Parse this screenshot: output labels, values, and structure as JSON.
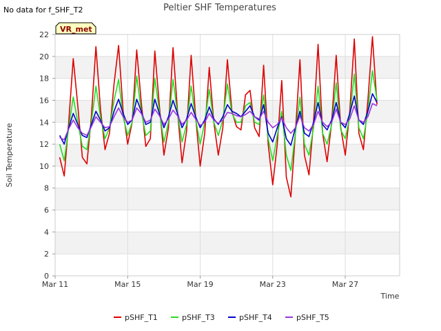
{
  "chart_data": {
    "type": "line",
    "title": "Peltier SHF Temperatures",
    "no_data_note": "No data for f_SHF_T2",
    "badge": "VR_met",
    "xlabel": "Time",
    "ylabel": "Soil Temperature",
    "ylim": [
      0,
      22
    ],
    "yticks": [
      0,
      2,
      4,
      6,
      8,
      10,
      12,
      14,
      16,
      18,
      20,
      22
    ],
    "xlim": [
      "2025-03-11",
      "2025-03-30"
    ],
    "xticks": [
      {
        "date": "2025-03-11",
        "label": "Mar 11"
      },
      {
        "date": "2025-03-15",
        "label": "Mar 15"
      },
      {
        "date": "2025-03-19",
        "label": "Mar 19"
      },
      {
        "date": "2025-03-23",
        "label": "Mar 23"
      },
      {
        "date": "2025-03-27",
        "label": "Mar 27"
      }
    ],
    "grid": true,
    "legend_position": "bottom",
    "series": [
      {
        "name": "pSHF_T1",
        "color": "#dd0000",
        "x": [
          "2025-03-11 06:00",
          "2025-03-11 12:00",
          "2025-03-11 18:00",
          "2025-03-12 00:00",
          "2025-03-12 06:00",
          "2025-03-12 12:00",
          "2025-03-12 18:00",
          "2025-03-13 00:00",
          "2025-03-13 06:00",
          "2025-03-13 12:00",
          "2025-03-13 18:00",
          "2025-03-14 00:00",
          "2025-03-14 06:00",
          "2025-03-14 12:00",
          "2025-03-14 18:00",
          "2025-03-15 00:00",
          "2025-03-15 06:00",
          "2025-03-15 12:00",
          "2025-03-15 18:00",
          "2025-03-16 00:00",
          "2025-03-16 06:00",
          "2025-03-16 12:00",
          "2025-03-16 18:00",
          "2025-03-17 00:00",
          "2025-03-17 06:00",
          "2025-03-17 12:00",
          "2025-03-17 18:00",
          "2025-03-18 00:00",
          "2025-03-18 06:00",
          "2025-03-18 12:00",
          "2025-03-18 18:00",
          "2025-03-19 00:00",
          "2025-03-19 06:00",
          "2025-03-19 12:00",
          "2025-03-19 18:00",
          "2025-03-20 00:00",
          "2025-03-20 06:00",
          "2025-03-20 12:00",
          "2025-03-20 18:00",
          "2025-03-21 00:00",
          "2025-03-21 06:00",
          "2025-03-21 12:00",
          "2025-03-21 18:00",
          "2025-03-22 00:00",
          "2025-03-22 06:00",
          "2025-03-22 12:00",
          "2025-03-22 18:00",
          "2025-03-23 00:00",
          "2025-03-23 06:00",
          "2025-03-23 12:00",
          "2025-03-23 18:00",
          "2025-03-24 00:00",
          "2025-03-24 06:00",
          "2025-03-24 12:00",
          "2025-03-24 18:00",
          "2025-03-25 00:00",
          "2025-03-25 06:00",
          "2025-03-25 12:00",
          "2025-03-25 18:00",
          "2025-03-26 00:00",
          "2025-03-26 06:00",
          "2025-03-26 12:00",
          "2025-03-26 18:00",
          "2025-03-27 00:00",
          "2025-03-27 06:00",
          "2025-03-27 12:00",
          "2025-03-27 18:00",
          "2025-03-28 00:00",
          "2025-03-28 06:00",
          "2025-03-28 12:00",
          "2025-03-28 18:00"
        ],
        "values": [
          10.8,
          9.1,
          14.0,
          19.8,
          15.5,
          10.8,
          10.2,
          14.5,
          20.9,
          15.2,
          11.5,
          13.0,
          17.5,
          21.0,
          15.0,
          12.0,
          14.0,
          20.6,
          15.8,
          11.8,
          12.5,
          20.5,
          15.5,
          11.0,
          13.5,
          20.8,
          15.0,
          10.3,
          13.2,
          20.1,
          14.5,
          10.0,
          13.0,
          19.0,
          14.0,
          11.0,
          13.5,
          19.7,
          15.0,
          13.6,
          13.3,
          16.5,
          16.9,
          13.5,
          12.7,
          19.2,
          12.0,
          8.3,
          12.0,
          17.8,
          9.0,
          7.2,
          13.0,
          19.7,
          11.0,
          9.2,
          14.0,
          21.1,
          13.0,
          10.4,
          14.0,
          20.1,
          13.5,
          11.0,
          15.0,
          21.6,
          13.0,
          11.5,
          16.0,
          21.8,
          15.6
        ]
      },
      {
        "name": "pSHF_T3",
        "color": "#22dd22",
        "x": [
          "2025-03-11 06:00",
          "2025-03-11 12:00",
          "2025-03-11 18:00",
          "2025-03-12 00:00",
          "2025-03-12 06:00",
          "2025-03-12 12:00",
          "2025-03-12 18:00",
          "2025-03-13 00:00",
          "2025-03-13 06:00",
          "2025-03-13 12:00",
          "2025-03-13 18:00",
          "2025-03-14 00:00",
          "2025-03-14 06:00",
          "2025-03-14 12:00",
          "2025-03-14 18:00",
          "2025-03-15 00:00",
          "2025-03-15 06:00",
          "2025-03-15 12:00",
          "2025-03-15 18:00",
          "2025-03-16 00:00",
          "2025-03-16 06:00",
          "2025-03-16 12:00",
          "2025-03-16 18:00",
          "2025-03-17 00:00",
          "2025-03-17 06:00",
          "2025-03-17 12:00",
          "2025-03-17 18:00",
          "2025-03-18 00:00",
          "2025-03-18 06:00",
          "2025-03-18 12:00",
          "2025-03-18 18:00",
          "2025-03-19 00:00",
          "2025-03-19 06:00",
          "2025-03-19 12:00",
          "2025-03-19 18:00",
          "2025-03-20 00:00",
          "2025-03-20 06:00",
          "2025-03-20 12:00",
          "2025-03-20 18:00",
          "2025-03-21 00:00",
          "2025-03-21 06:00",
          "2025-03-21 12:00",
          "2025-03-21 18:00",
          "2025-03-22 00:00",
          "2025-03-22 06:00",
          "2025-03-22 12:00",
          "2025-03-22 18:00",
          "2025-03-23 00:00",
          "2025-03-23 06:00",
          "2025-03-23 12:00",
          "2025-03-23 18:00",
          "2025-03-24 00:00",
          "2025-03-24 06:00",
          "2025-03-24 12:00",
          "2025-03-24 18:00",
          "2025-03-25 00:00",
          "2025-03-25 06:00",
          "2025-03-25 12:00",
          "2025-03-25 18:00",
          "2025-03-26 00:00",
          "2025-03-26 06:00",
          "2025-03-26 12:00",
          "2025-03-26 18:00",
          "2025-03-27 00:00",
          "2025-03-27 06:00",
          "2025-03-27 12:00",
          "2025-03-27 18:00",
          "2025-03-28 00:00",
          "2025-03-28 06:00",
          "2025-03-28 12:00",
          "2025-03-28 18:00"
        ],
        "values": [
          12.0,
          10.5,
          13.5,
          16.3,
          14.0,
          11.8,
          11.5,
          14.0,
          17.3,
          14.5,
          12.5,
          13.5,
          16.0,
          17.9,
          14.5,
          12.8,
          14.0,
          18.2,
          15.0,
          12.8,
          13.2,
          18.0,
          15.0,
          12.2,
          14.0,
          17.9,
          14.8,
          12.2,
          13.8,
          17.3,
          14.3,
          12.0,
          14.0,
          17.0,
          14.0,
          12.8,
          14.2,
          17.5,
          14.8,
          14.0,
          14.0,
          15.5,
          15.8,
          14.0,
          13.8,
          16.5,
          12.5,
          10.5,
          12.8,
          15.0,
          11.0,
          9.6,
          13.0,
          16.3,
          12.0,
          11.0,
          13.5,
          17.3,
          13.0,
          12.0,
          13.8,
          17.6,
          13.3,
          12.5,
          14.5,
          18.4,
          13.5,
          12.5,
          15.0,
          18.7,
          16.0
        ]
      },
      {
        "name": "pSHF_T4",
        "color": "#0000cc",
        "x": [
          "2025-03-11 06:00",
          "2025-03-11 12:00",
          "2025-03-11 18:00",
          "2025-03-12 00:00",
          "2025-03-12 06:00",
          "2025-03-12 12:00",
          "2025-03-12 18:00",
          "2025-03-13 00:00",
          "2025-03-13 06:00",
          "2025-03-13 12:00",
          "2025-03-13 18:00",
          "2025-03-14 00:00",
          "2025-03-14 06:00",
          "2025-03-14 12:00",
          "2025-03-14 18:00",
          "2025-03-15 00:00",
          "2025-03-15 06:00",
          "2025-03-15 12:00",
          "2025-03-15 18:00",
          "2025-03-16 00:00",
          "2025-03-16 06:00",
          "2025-03-16 12:00",
          "2025-03-16 18:00",
          "2025-03-17 00:00",
          "2025-03-17 06:00",
          "2025-03-17 12:00",
          "2025-03-17 18:00",
          "2025-03-18 00:00",
          "2025-03-18 06:00",
          "2025-03-18 12:00",
          "2025-03-18 18:00",
          "2025-03-19 00:00",
          "2025-03-19 06:00",
          "2025-03-19 12:00",
          "2025-03-19 18:00",
          "2025-03-20 00:00",
          "2025-03-20 06:00",
          "2025-03-20 12:00",
          "2025-03-20 18:00",
          "2025-03-21 00:00",
          "2025-03-21 06:00",
          "2025-03-21 12:00",
          "2025-03-21 18:00",
          "2025-03-22 00:00",
          "2025-03-22 06:00",
          "2025-03-22 12:00",
          "2025-03-22 18:00",
          "2025-03-23 00:00",
          "2025-03-23 06:00",
          "2025-03-23 12:00",
          "2025-03-23 18:00",
          "2025-03-24 00:00",
          "2025-03-24 06:00",
          "2025-03-24 12:00",
          "2025-03-24 18:00",
          "2025-03-25 00:00",
          "2025-03-25 06:00",
          "2025-03-25 12:00",
          "2025-03-25 18:00",
          "2025-03-26 00:00",
          "2025-03-26 06:00",
          "2025-03-26 12:00",
          "2025-03-26 18:00",
          "2025-03-27 00:00",
          "2025-03-27 06:00",
          "2025-03-27 12:00",
          "2025-03-27 18:00",
          "2025-03-28 00:00",
          "2025-03-28 06:00",
          "2025-03-28 12:00",
          "2025-03-28 18:00"
        ],
        "values": [
          12.8,
          12.0,
          13.5,
          14.8,
          13.8,
          12.8,
          12.6,
          13.8,
          15.0,
          14.2,
          13.2,
          13.5,
          15.0,
          16.1,
          14.8,
          13.8,
          14.2,
          16.1,
          15.0,
          13.8,
          14.0,
          16.1,
          14.8,
          13.5,
          14.5,
          16.0,
          14.8,
          13.5,
          14.3,
          15.7,
          14.5,
          13.5,
          14.2,
          15.4,
          14.3,
          13.8,
          14.5,
          15.6,
          15.0,
          14.8,
          14.5,
          15.0,
          15.5,
          14.5,
          14.2,
          15.6,
          13.0,
          12.2,
          13.5,
          14.5,
          12.5,
          11.9,
          13.5,
          15.0,
          13.0,
          12.7,
          14.0,
          15.8,
          13.8,
          13.3,
          14.2,
          15.8,
          14.0,
          13.5,
          14.8,
          16.4,
          14.2,
          13.8,
          15.0,
          16.6,
          15.8
        ]
      },
      {
        "name": "pSHF_T5",
        "color": "#9933dd",
        "x": [
          "2025-03-11 06:00",
          "2025-03-11 12:00",
          "2025-03-11 18:00",
          "2025-03-12 00:00",
          "2025-03-12 06:00",
          "2025-03-12 12:00",
          "2025-03-12 18:00",
          "2025-03-13 00:00",
          "2025-03-13 06:00",
          "2025-03-13 12:00",
          "2025-03-13 18:00",
          "2025-03-14 00:00",
          "2025-03-14 06:00",
          "2025-03-14 12:00",
          "2025-03-14 18:00",
          "2025-03-15 00:00",
          "2025-03-15 06:00",
          "2025-03-15 12:00",
          "2025-03-15 18:00",
          "2025-03-16 00:00",
          "2025-03-16 06:00",
          "2025-03-16 12:00",
          "2025-03-16 18:00",
          "2025-03-17 00:00",
          "2025-03-17 06:00",
          "2025-03-17 12:00",
          "2025-03-17 18:00",
          "2025-03-18 00:00",
          "2025-03-18 06:00",
          "2025-03-18 12:00",
          "2025-03-18 18:00",
          "2025-03-19 00:00",
          "2025-03-19 06:00",
          "2025-03-19 12:00",
          "2025-03-19 18:00",
          "2025-03-20 00:00",
          "2025-03-20 06:00",
          "2025-03-20 12:00",
          "2025-03-20 18:00",
          "2025-03-21 00:00",
          "2025-03-21 06:00",
          "2025-03-21 12:00",
          "2025-03-21 18:00",
          "2025-03-22 00:00",
          "2025-03-22 06:00",
          "2025-03-22 12:00",
          "2025-03-22 18:00",
          "2025-03-23 00:00",
          "2025-03-23 06:00",
          "2025-03-23 12:00",
          "2025-03-23 18:00",
          "2025-03-24 00:00",
          "2025-03-24 06:00",
          "2025-03-24 12:00",
          "2025-03-24 18:00",
          "2025-03-25 00:00",
          "2025-03-25 06:00",
          "2025-03-25 12:00",
          "2025-03-25 18:00",
          "2025-03-26 00:00",
          "2025-03-26 06:00",
          "2025-03-26 12:00",
          "2025-03-26 18:00",
          "2025-03-27 00:00",
          "2025-03-27 06:00",
          "2025-03-27 12:00",
          "2025-03-27 18:00",
          "2025-03-28 00:00",
          "2025-03-28 06:00",
          "2025-03-28 12:00",
          "2025-03-28 18:00"
        ],
        "values": [
          12.6,
          12.4,
          13.4,
          14.2,
          13.5,
          13.0,
          12.8,
          13.6,
          14.5,
          14.0,
          13.5,
          13.6,
          14.5,
          15.3,
          14.5,
          14.0,
          14.2,
          15.3,
          14.8,
          14.0,
          14.2,
          15.2,
          14.6,
          13.8,
          14.3,
          15.1,
          14.6,
          13.8,
          14.2,
          14.9,
          14.3,
          13.7,
          14.0,
          14.8,
          14.2,
          13.9,
          14.2,
          14.9,
          14.8,
          14.6,
          14.5,
          14.7,
          15.0,
          14.5,
          14.3,
          15.0,
          14.0,
          13.5,
          13.8,
          14.4,
          13.5,
          13.0,
          13.5,
          14.6,
          13.5,
          13.2,
          13.8,
          15.0,
          14.0,
          13.6,
          14.0,
          15.2,
          14.0,
          13.8,
          14.3,
          15.5,
          14.2,
          14.0,
          14.5,
          15.7,
          15.5
        ]
      }
    ]
  }
}
